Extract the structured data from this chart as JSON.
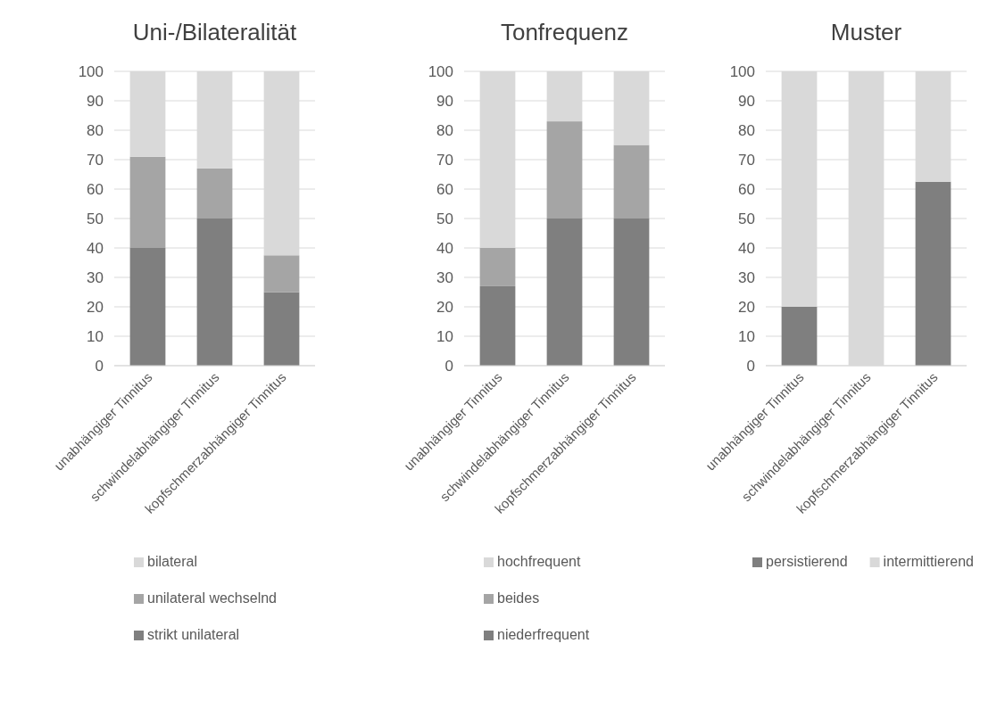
{
  "chart_data": [
    {
      "type": "bar",
      "title": "Uni-/Bilateralität",
      "stacked": true,
      "categories": [
        "unabhängiger Tinnitus",
        "schwindelabhängiger Tinnitus",
        "kopfschmerzabhängiger Tinnitus"
      ],
      "ylim": [
        0,
        100
      ],
      "yticks": [
        0,
        10,
        20,
        30,
        40,
        50,
        60,
        70,
        80,
        90,
        100
      ],
      "grid": "y",
      "legend": "bottom",
      "series": [
        {
          "name": "strikt unilateral",
          "color": "#7f7f7f",
          "values": [
            40,
            50,
            25
          ]
        },
        {
          "name": "unilateral wechselnd",
          "color": "#a5a5a5",
          "values": [
            31,
            17,
            12.5
          ]
        },
        {
          "name": "bilateral",
          "color": "#d9d9d9",
          "values": [
            29,
            33,
            62.5
          ]
        }
      ]
    },
    {
      "type": "bar",
      "title": "Tonfrequenz",
      "stacked": true,
      "categories": [
        "unabhängiger Tinnitus",
        "schwindelabhängiger Tinnitus",
        "kopfschmerzabhängiger Tinnitus"
      ],
      "ylim": [
        0,
        100
      ],
      "yticks": [
        0,
        10,
        20,
        30,
        40,
        50,
        60,
        70,
        80,
        90,
        100
      ],
      "grid": "y",
      "legend": "bottom",
      "series": [
        {
          "name": "niederfrequent",
          "color": "#7f7f7f",
          "values": [
            27,
            50,
            50
          ]
        },
        {
          "name": "beides",
          "color": "#a5a5a5",
          "values": [
            13,
            33,
            25
          ]
        },
        {
          "name": "hochfrequent",
          "color": "#d9d9d9",
          "values": [
            60,
            17,
            25
          ]
        }
      ]
    },
    {
      "type": "bar",
      "title": "Muster",
      "stacked": true,
      "categories": [
        "unabhängiger Tinnitus",
        "schwindelabhängiger Tinnitus",
        "kopfschmerzabhängiger Tinnitus"
      ],
      "ylim": [
        0,
        100
      ],
      "yticks": [
        0,
        10,
        20,
        30,
        40,
        50,
        60,
        70,
        80,
        90,
        100
      ],
      "grid": "y",
      "legend": "bottom",
      "series": [
        {
          "name": "persistierend",
          "color": "#7f7f7f",
          "values": [
            20,
            0,
            62.5
          ]
        },
        {
          "name": "intermittierend",
          "color": "#d9d9d9",
          "values": [
            80,
            100,
            37.5
          ]
        }
      ]
    }
  ]
}
